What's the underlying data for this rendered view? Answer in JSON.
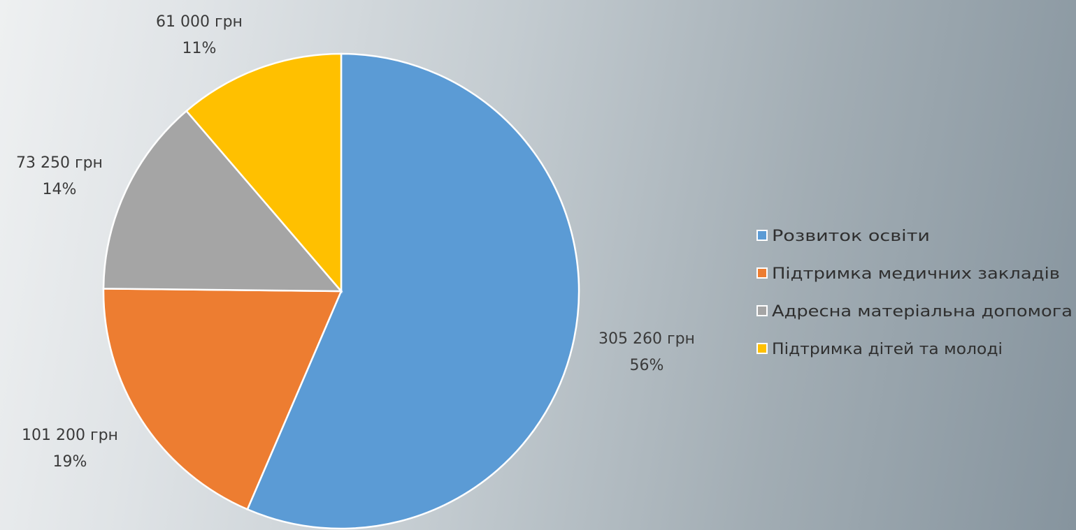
{
  "chart_data": {
    "type": "pie",
    "categories": [
      "Розвиток освіти",
      "Підтримка медичних закладів",
      "Адресна матеріальна допомога",
      "Підтримка дітей та молоді"
    ],
    "values": [
      305260,
      101200,
      73250,
      61000
    ],
    "value_labels": [
      "305 260 грн",
      "101 200 грн",
      "73 250 грн",
      "61 000 грн"
    ],
    "percent_labels": [
      "56%",
      "19%",
      "14%",
      "11%"
    ],
    "colors": [
      "#5b9bd5",
      "#ed7d31",
      "#a5a5a5",
      "#ffc000"
    ],
    "legend_position": "right"
  }
}
